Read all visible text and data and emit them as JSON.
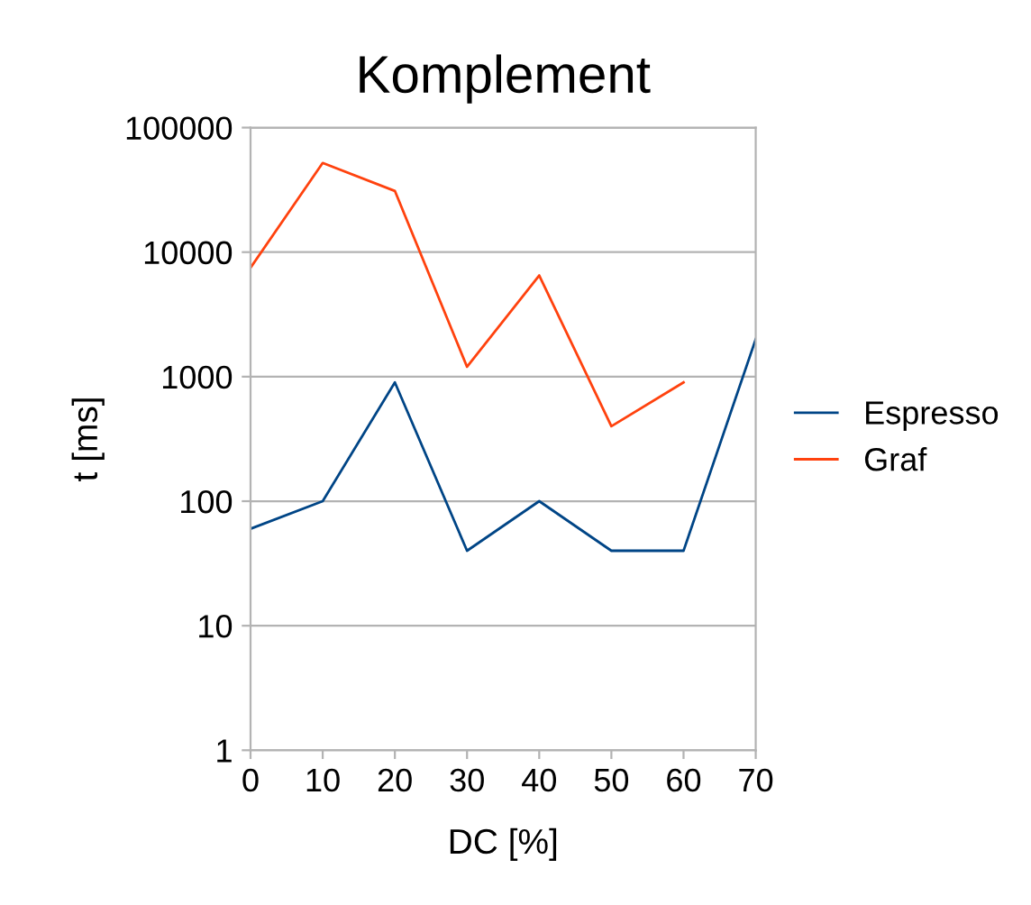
{
  "chart_data": {
    "type": "line",
    "title": "Komplement",
    "xlabel": "DC [%]",
    "ylabel": "t [ms]",
    "x": [
      0,
      10,
      20,
      30,
      40,
      50,
      60,
      70
    ],
    "series": [
      {
        "name": "Espresso",
        "color": "#004586",
        "values": [
          60,
          100,
          900,
          40,
          100,
          40,
          40,
          2000
        ]
      },
      {
        "name": "Graf",
        "color": "#ff420e",
        "values": [
          7500,
          52000,
          31000,
          1200,
          6500,
          400,
          900,
          null
        ]
      }
    ],
    "log": "y",
    "xlim": [
      0,
      70
    ],
    "xticks": [
      0,
      10,
      20,
      30,
      40,
      50,
      60,
      70
    ],
    "ylim": [
      1,
      100000
    ],
    "yticks": [
      1,
      10,
      100,
      1000,
      10000,
      100000
    ],
    "grid": "y",
    "legend": "right",
    "marker": "none",
    "line_style": "solid"
  }
}
